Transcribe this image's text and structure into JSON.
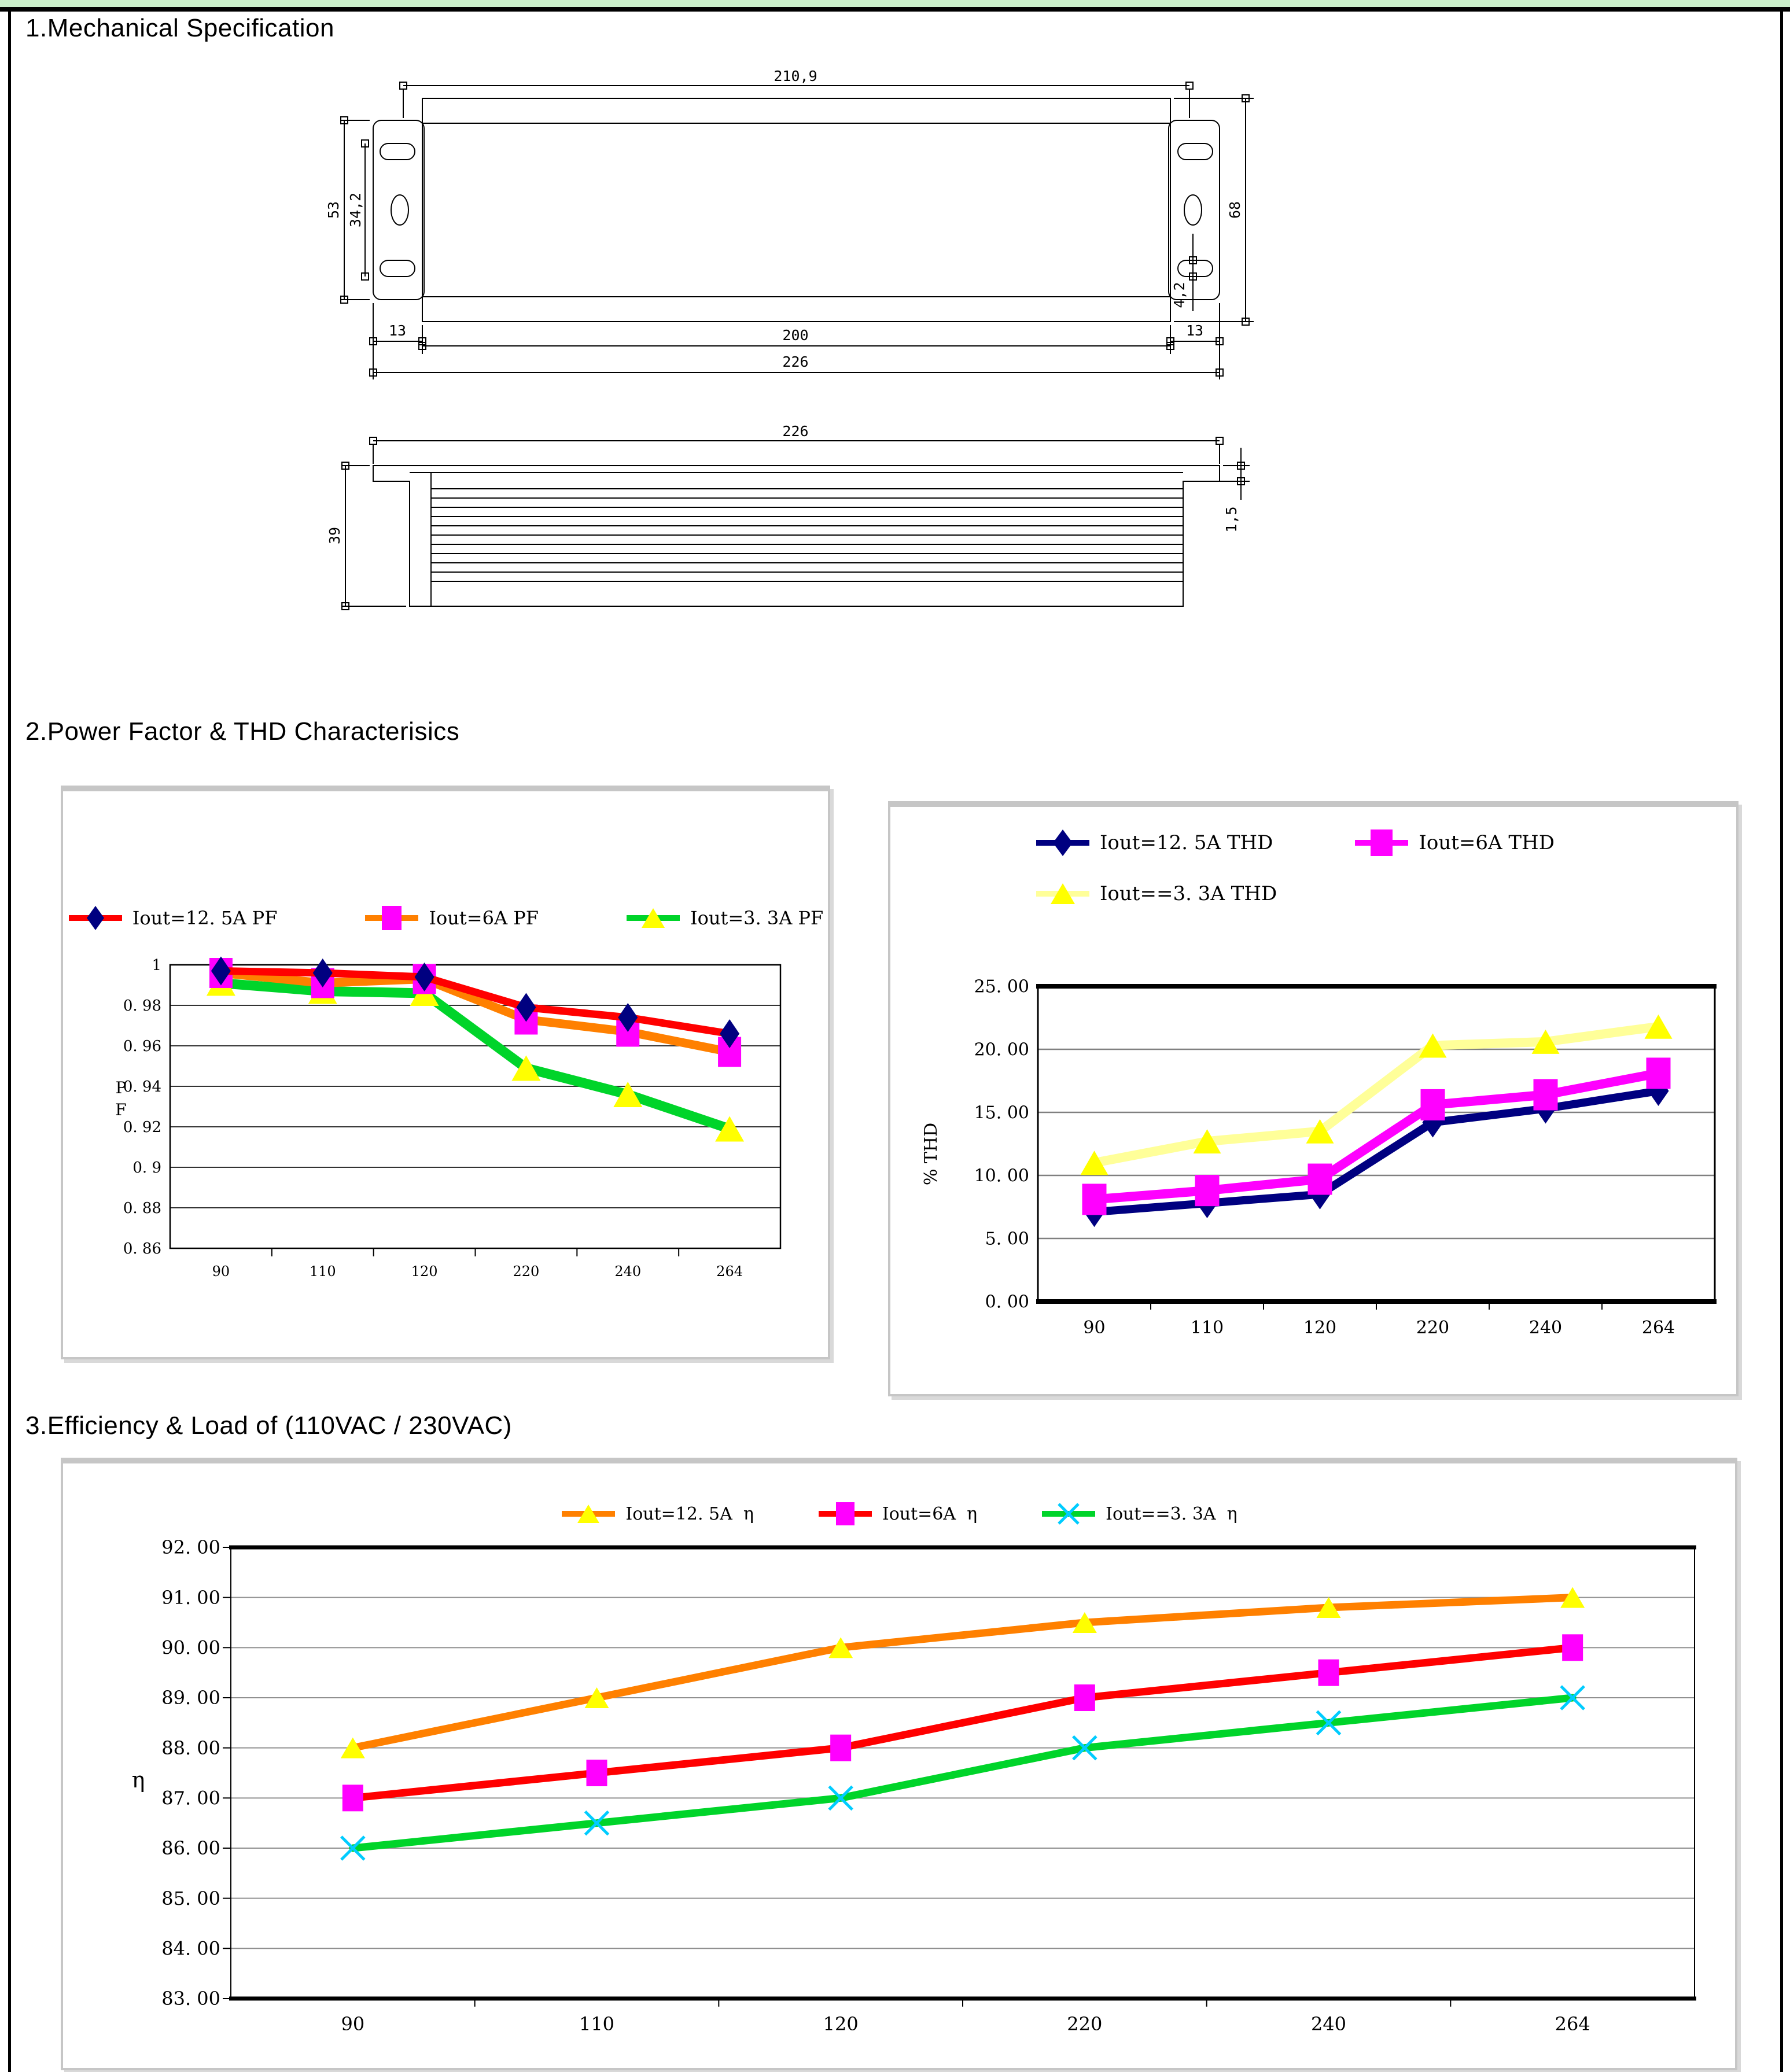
{
  "page": {
    "bg": "#ffffff",
    "top_strip_color": "#c9eec9"
  },
  "sections": {
    "s1": "1.Mechanical Specification",
    "s2": "2.Power Factor & THD Characterisics",
    "s3": "3.Efficiency & Load of (110VAC / 230VAC)"
  },
  "mech": {
    "top": {
      "w_outer": "210,9",
      "w_body": "200",
      "w_total": "226",
      "flange_l": "13",
      "flange_r": "13",
      "bracket_h": "53",
      "slot_span": "34,2",
      "slot_w": "4,2",
      "body_h": "68"
    },
    "side": {
      "w_total": "226",
      "height": "39",
      "plate": "1,5"
    }
  },
  "chart_data": [
    {
      "type": "line",
      "name": "power-factor",
      "categories": [
        "90",
        "110",
        "120",
        "220",
        "240",
        "264"
      ],
      "ylabel_lines": [
        "P",
        "F"
      ],
      "ylim": [
        0.86,
        1.0
      ],
      "grid": true,
      "legend_position": "top",
      "yticks": [
        {
          "v": 1.0,
          "label": "1"
        },
        {
          "v": 0.98,
          "label": "0. 98"
        },
        {
          "v": 0.96,
          "label": "0. 96"
        },
        {
          "v": 0.94,
          "label": "0. 94"
        },
        {
          "v": 0.92,
          "label": "0. 92"
        },
        {
          "v": 0.9,
          "label": "0. 9"
        },
        {
          "v": 0.88,
          "label": "0. 88"
        },
        {
          "v": 0.86,
          "label": "0. 86"
        }
      ],
      "series": [
        {
          "name": "Iout=12. 5A PF",
          "line_color": "#ff0000",
          "marker": "diamond",
          "marker_color": "#000080",
          "values": [
            0.997,
            0.996,
            0.994,
            0.979,
            0.974,
            0.966
          ]
        },
        {
          "name": "Iout=6A PF",
          "line_color": "#ff8000",
          "marker": "square",
          "marker_color": "#ff00ff",
          "values": [
            0.996,
            0.991,
            0.993,
            0.973,
            0.967,
            0.957
          ]
        },
        {
          "name": "Iout=3. 3A PF",
          "line_color": "#00d42a",
          "marker": "triangle",
          "marker_color": "#ffff00",
          "values": [
            0.991,
            0.987,
            0.986,
            0.949,
            0.936,
            0.919
          ]
        }
      ]
    },
    {
      "type": "line",
      "name": "thd",
      "categories": [
        "90",
        "110",
        "120",
        "220",
        "240",
        "264"
      ],
      "ylabel": "% THD",
      "ylim": [
        0.0,
        25.0
      ],
      "grid": true,
      "legend_position": "top",
      "yticks": [
        {
          "v": 25,
          "label": "25. 00"
        },
        {
          "v": 20,
          "label": "20. 00"
        },
        {
          "v": 15,
          "label": "15. 00"
        },
        {
          "v": 10,
          "label": "10. 00"
        },
        {
          "v": 5,
          "label": "5. 00"
        },
        {
          "v": 0,
          "label": "0. 00"
        }
      ],
      "series": [
        {
          "name": "Iout=12. 5A THD",
          "line_color": "#000080",
          "marker": "diamond",
          "marker_color": "#000080",
          "values": [
            7.1,
            7.8,
            8.5,
            14.2,
            15.3,
            16.7
          ]
        },
        {
          "name": "Iout=6A THD",
          "line_color": "#ff00ff",
          "marker": "square",
          "marker_color": "#ff00ff",
          "values": [
            8.1,
            8.8,
            9.7,
            15.6,
            16.4,
            18.1
          ]
        },
        {
          "name": "Iout==3. 3A THD",
          "line_color": "#ffff99",
          "marker": "triangle",
          "marker_color": "#ffff00",
          "values": [
            11.0,
            12.7,
            13.5,
            20.3,
            20.6,
            21.8
          ]
        }
      ]
    },
    {
      "type": "line",
      "name": "efficiency",
      "categories": [
        "90",
        "110",
        "120",
        "220",
        "240",
        "264"
      ],
      "ylabel": "η",
      "ylim": [
        83.0,
        92.0
      ],
      "grid": true,
      "legend_position": "top",
      "yticks": [
        {
          "v": 92,
          "label": "92. 00"
        },
        {
          "v": 91,
          "label": "91. 00"
        },
        {
          "v": 90,
          "label": "90. 00"
        },
        {
          "v": 89,
          "label": "89. 00"
        },
        {
          "v": 88,
          "label": "88. 00"
        },
        {
          "v": 87,
          "label": "87. 00"
        },
        {
          "v": 86,
          "label": "86. 00"
        },
        {
          "v": 85,
          "label": "85. 00"
        },
        {
          "v": 84,
          "label": "84. 00"
        },
        {
          "v": 83,
          "label": "83. 00"
        }
      ],
      "series": [
        {
          "name": "Iout=12. 5A  η",
          "line_color": "#ff8000",
          "marker": "triangle",
          "marker_color": "#ffff00",
          "values": [
            88.0,
            89.0,
            90.0,
            90.5,
            90.8,
            91.0
          ]
        },
        {
          "name": "Iout=6A  η",
          "line_color": "#ff0000",
          "marker": "square",
          "marker_color": "#ff00ff",
          "values": [
            87.0,
            87.5,
            88.0,
            89.0,
            89.5,
            90.0
          ]
        },
        {
          "name": "Iout==3. 3A  η",
          "line_color": "#00d42a",
          "marker": "x",
          "marker_color": "#00ccff",
          "values": [
            86.0,
            86.5,
            87.0,
            88.0,
            88.5,
            89.0
          ]
        }
      ]
    }
  ]
}
